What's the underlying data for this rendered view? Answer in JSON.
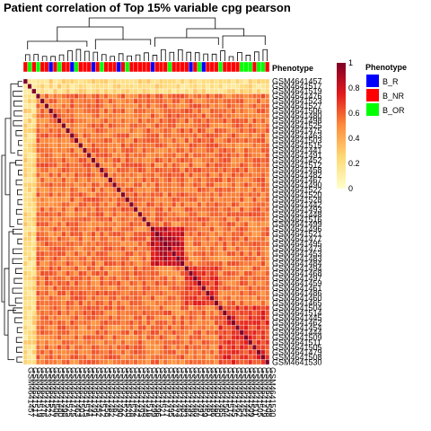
{
  "chart_data": {
    "type": "heatmap",
    "title": "Patient correlation of Top 15% variable cpg pearson",
    "color_scale": {
      "ticks": [
        "1",
        "0.8",
        "0.6",
        "0.4",
        "0.2",
        "0"
      ],
      "range": [
        0,
        1
      ],
      "colors": [
        "#FFFFCC",
        "#FED976",
        "#FD8D3C",
        "#E31A1C",
        "#800026"
      ]
    },
    "annotation": {
      "track_label": "Phenotype",
      "legend_title": "Phenotype",
      "levels": [
        {
          "name": "B_R",
          "color": "#0000FF"
        },
        {
          "name": "B_NR",
          "color": "#FF0000"
        },
        {
          "name": "B_OR",
          "color": "#00FF00"
        }
      ]
    },
    "samples": [
      "GSM4641457",
      "GSM4641517",
      "GSM4641519",
      "GSM4641476",
      "GSM4641523",
      "GSM4641527",
      "GSM4641506",
      "GSM4641480",
      "GSM4641498",
      "GSM4641525",
      "GSM4641475",
      "GSM4641463",
      "GSM4641503",
      "GSM4641515",
      "GSM4641441",
      "GSM4641491",
      "GSM4641452",
      "GSM4641512",
      "GSM4641458",
      "GSM4641482",
      "GSM4641467",
      "GSM4641490",
      "GSM4641522",
      "GSM4641520",
      "GSM4641528",
      "GSM4641442",
      "GSM4641493",
      "GSM4641448",
      "GSM4641516",
      "GSM4641499",
      "GSM4641496",
      "GSM4641521",
      "GSM4641477",
      "GSM4641495",
      "GSM4641473",
      "GSM4641453",
      "GSM4641483",
      "GSM4641484",
      "GSM4641494",
      "GSM4641468",
      "GSM4641497",
      "GSM4641459",
      "GSM4641461",
      "GSM4641486",
      "GSM4641460",
      "GSM4641465",
      "GSM4641504",
      "GSM4641514",
      "GSM4641445",
      "GSM4641462",
      "GSM4641454",
      "GSM4641444",
      "GSM4641509",
      "GSM4641511",
      "GSM4641505",
      "GSM4641479",
      "GSM4641508",
      "GSM4641530"
    ],
    "phenotype": [
      "B_NR",
      "B_OR",
      "B_NR",
      "B_OR",
      "B_NR",
      "B_NR",
      "B_R",
      "B_NR",
      "B_OR",
      "B_NR",
      "B_NR",
      "B_R",
      "B_OR",
      "B_NR",
      "B_NR",
      "B_NR",
      "B_R",
      "B_NR",
      "B_OR",
      "B_NR",
      "B_NR",
      "B_NR",
      "B_R",
      "B_NR",
      "B_OR",
      "B_NR",
      "B_NR",
      "B_NR",
      "B_NR",
      "B_NR",
      "B_R",
      "B_NR",
      "B_NR",
      "B_NR",
      "B_OR",
      "B_NR",
      "B_NR",
      "B_NR",
      "B_NR",
      "B_R",
      "B_NR",
      "B_OR",
      "B_R",
      "B_NR",
      "B_NR",
      "B_NR",
      "B_OR",
      "B_NR",
      "B_NR",
      "B_NR",
      "B_NR",
      "B_OR",
      "B_OR",
      "B_OR",
      "B_NR",
      "B_OR",
      "B_OR",
      "B_NR"
    ],
    "block_structure": {
      "background": 0.55,
      "diagonal": 1.0,
      "blocks": [
        {
          "from": 30,
          "to": 37,
          "value": 0.82
        },
        {
          "from": 38,
          "to": 45,
          "value": 0.66
        },
        {
          "from": 46,
          "to": 57,
          "value": 0.68
        }
      ],
      "low_samples": [
        0,
        1,
        2
      ]
    }
  }
}
